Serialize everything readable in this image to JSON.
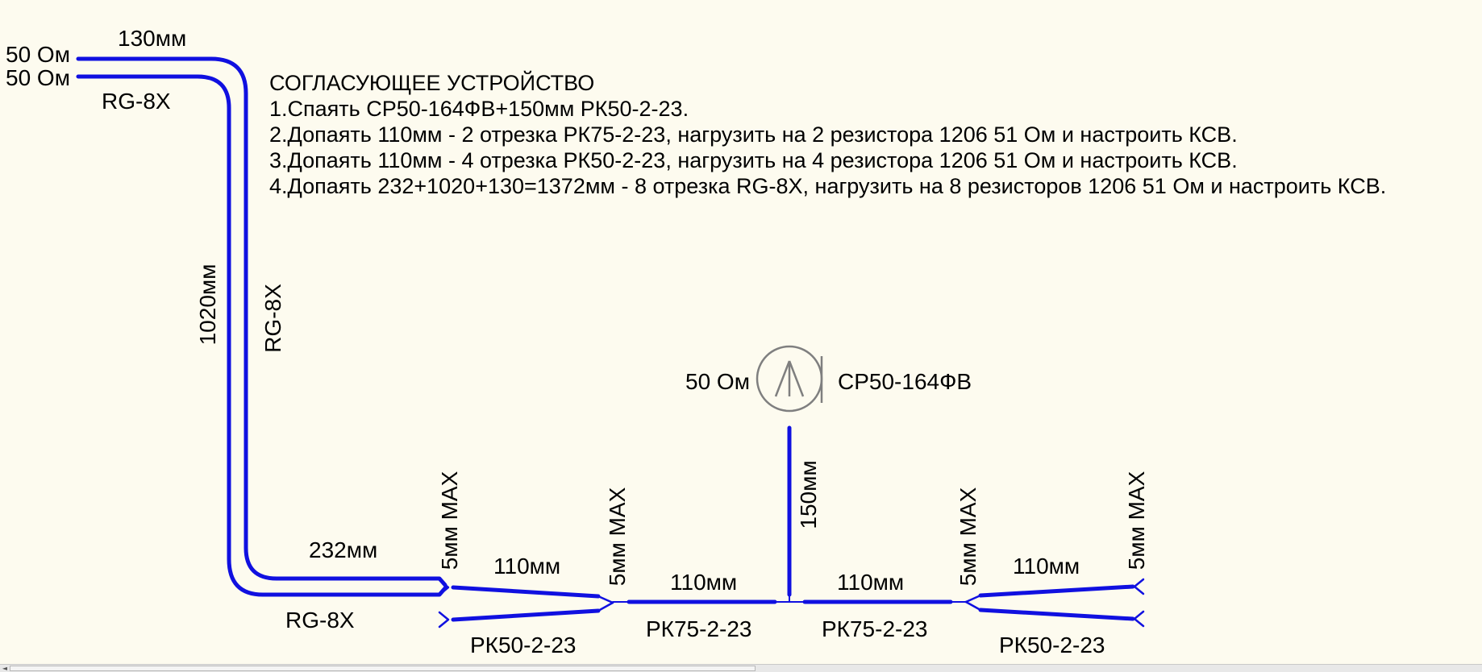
{
  "colors": {
    "background": "#fdfbef",
    "cable": "#1010e0",
    "symbol": "#7f7f7f",
    "text": "#000000"
  },
  "notes": {
    "heading": "СОГЛАСУЮЩЕЕ УСТРОЙСТВО",
    "steps": [
      "1.Спаять СР50-164ФВ+150мм РК50-2-23.",
      "2.Допаять 110мм - 2 отрезка РК75-2-23, нагрузить на 2 резистора 1206 51 Ом и настроить КСВ.",
      "3.Допаять 110мм - 4 отрезка РК50-2-23, нагрузить на 4 резистора 1206 51 Ом и настроить КСВ.",
      "4.Допаять 232+1020+130=1372мм - 8 отрезка RG-8X, нагрузить на 8 резисторов 1206 51 Ом и настроить КСВ."
    ]
  },
  "terminals": {
    "top_a": "50 Ом",
    "top_b": "50 Ом"
  },
  "connector": {
    "impedance": "50 Ом",
    "name": "СР50-164ФВ",
    "icon": "coax-connector-icon"
  },
  "labels": {
    "len_130": "130мм",
    "rg8x_top": "RG-8X",
    "len_1020": "1020мм",
    "rg8x_vertical": "RG-8X",
    "len_232": "232мм",
    "rg8x_bottom": "RG-8X",
    "max_a": "5мм MAX",
    "max_b": "5мм MAX",
    "max_c": "5мм MAX",
    "max_d": "5мм MAX",
    "len_110_left_rk50": "110мм",
    "rk50_left": "РК50-2-23",
    "len_110_left_rk75": "110мм",
    "rk75_left": "РК75-2-23",
    "len_150": "150мм",
    "len_110_right_rk75": "110мм",
    "rk75_right": "РК75-2-23",
    "len_110_right_rk50": "110мм",
    "rk50_right": "РК50-2-23"
  },
  "scrollbar": {
    "left_arrow": "◄"
  }
}
